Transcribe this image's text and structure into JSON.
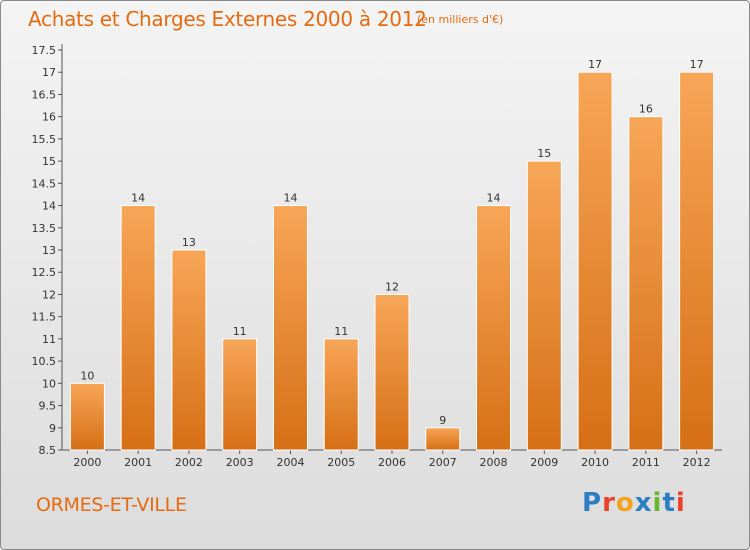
{
  "header": {
    "title": "Achats et Charges Externes 2000 à 2012",
    "subtitle": "(en milliers d'€)"
  },
  "footer": {
    "commune": "ORMES-ET-VILLE",
    "logo_text": "Proxiti",
    "logo_colors": [
      "#2b7ec1",
      "#e8442b",
      "#f2a31b",
      "#2b7ec1",
      "#6bb631",
      "#2b7ec1",
      "#e8442b"
    ]
  },
  "colors": {
    "bar_light": "#f7a657",
    "bar_dark": "#d66f15",
    "accent": "#e46b12"
  },
  "chart_data": {
    "type": "bar",
    "title": "Achats et Charges Externes 2000 à 2012",
    "subtitle": "(en milliers d'€)",
    "categories": [
      "2000",
      "2001",
      "2002",
      "2003",
      "2004",
      "2005",
      "2006",
      "2007",
      "2008",
      "2009",
      "2010",
      "2011",
      "2012"
    ],
    "values": [
      10,
      14,
      13,
      11,
      14,
      11,
      12,
      9,
      14,
      15,
      17,
      16,
      17
    ],
    "data_labels": [
      "10",
      "14",
      "13",
      "11",
      "14",
      "11",
      "12",
      "9",
      "14",
      "15",
      "17",
      "16",
      "17"
    ],
    "ylim": [
      8.5,
      17.5
    ],
    "y_ticks": [
      "8.5",
      "9",
      "9.5",
      "10",
      "10.5",
      "11",
      "11.5",
      "12",
      "12.5",
      "13",
      "13.5",
      "14",
      "14.5",
      "15",
      "15.5",
      "16",
      "16.5",
      "17",
      "17.5"
    ],
    "grid": false
  }
}
